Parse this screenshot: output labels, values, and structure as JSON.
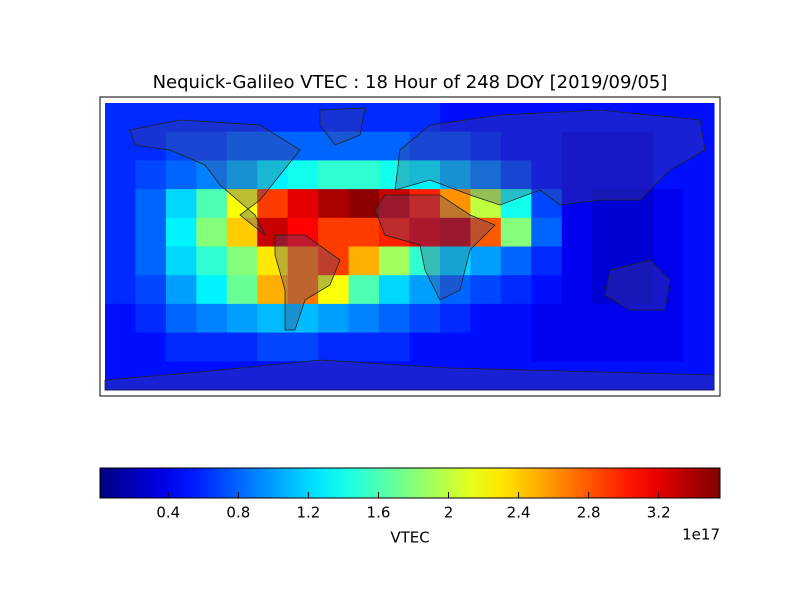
{
  "chart_data": {
    "type": "heatmap",
    "title": "Nequick-Galileo VTEC : 18 Hour of 248 DOY [2019/09/05]",
    "colormap": "jet",
    "clim": [
      0.01,
      3.55
    ],
    "ticks": [
      0.4,
      0.8,
      1.2,
      1.6,
      2.0,
      2.4,
      2.8,
      3.2
    ],
    "colorbar_label": "VTEC",
    "offset_label": "1e17",
    "values": [
      [
        0.6,
        0.6,
        0.6,
        0.6,
        0.6,
        0.6,
        0.6,
        0.6,
        0.6,
        0.6,
        0.6,
        0.5,
        0.5,
        0.5,
        0.5,
        0.5,
        0.5,
        0.5,
        0.5,
        0.5
      ],
      [
        0.6,
        0.6,
        0.7,
        0.7,
        0.8,
        0.8,
        0.8,
        0.8,
        0.8,
        0.8,
        0.7,
        0.7,
        0.6,
        0.5,
        0.5,
        0.4,
        0.4,
        0.4,
        0.5,
        0.5
      ],
      [
        0.6,
        0.7,
        0.8,
        0.9,
        1.1,
        1.3,
        1.4,
        1.5,
        1.5,
        1.4,
        1.3,
        1.1,
        0.9,
        0.7,
        0.5,
        0.4,
        0.4,
        0.4,
        0.5,
        0.5
      ],
      [
        0.6,
        0.8,
        1.2,
        1.6,
        2.2,
        2.9,
        3.2,
        3.4,
        3.5,
        3.3,
        3.0,
        2.6,
        2.0,
        1.4,
        0.7,
        0.4,
        0.3,
        0.3,
        0.4,
        0.5
      ],
      [
        0.6,
        0.8,
        1.3,
        1.8,
        2.4,
        3.3,
        3.1,
        2.9,
        2.9,
        3.0,
        3.2,
        3.3,
        2.8,
        1.8,
        0.8,
        0.4,
        0.3,
        0.3,
        0.4,
        0.5
      ],
      [
        0.6,
        0.8,
        1.2,
        1.5,
        1.8,
        2.3,
        2.7,
        2.9,
        2.5,
        1.9,
        1.5,
        1.2,
        1.0,
        0.8,
        0.6,
        0.4,
        0.3,
        0.3,
        0.4,
        0.5
      ],
      [
        0.6,
        0.7,
        1.0,
        1.3,
        1.7,
        2.5,
        2.7,
        2.2,
        1.6,
        1.2,
        1.0,
        0.8,
        0.7,
        0.6,
        0.5,
        0.4,
        0.3,
        0.3,
        0.4,
        0.5
      ],
      [
        0.5,
        0.6,
        0.8,
        0.9,
        1.0,
        1.1,
        1.1,
        1.0,
        0.9,
        0.8,
        0.7,
        0.6,
        0.5,
        0.5,
        0.4,
        0.4,
        0.4,
        0.4,
        0.4,
        0.5
      ],
      [
        0.5,
        0.5,
        0.6,
        0.6,
        0.6,
        0.7,
        0.7,
        0.6,
        0.6,
        0.6,
        0.5,
        0.5,
        0.5,
        0.5,
        0.4,
        0.4,
        0.4,
        0.4,
        0.4,
        0.5
      ],
      [
        0.5,
        0.5,
        0.5,
        0.5,
        0.5,
        0.5,
        0.5,
        0.5,
        0.5,
        0.5,
        0.5,
        0.5,
        0.5,
        0.5,
        0.5,
        0.5,
        0.5,
        0.5,
        0.5,
        0.5
      ]
    ]
  }
}
